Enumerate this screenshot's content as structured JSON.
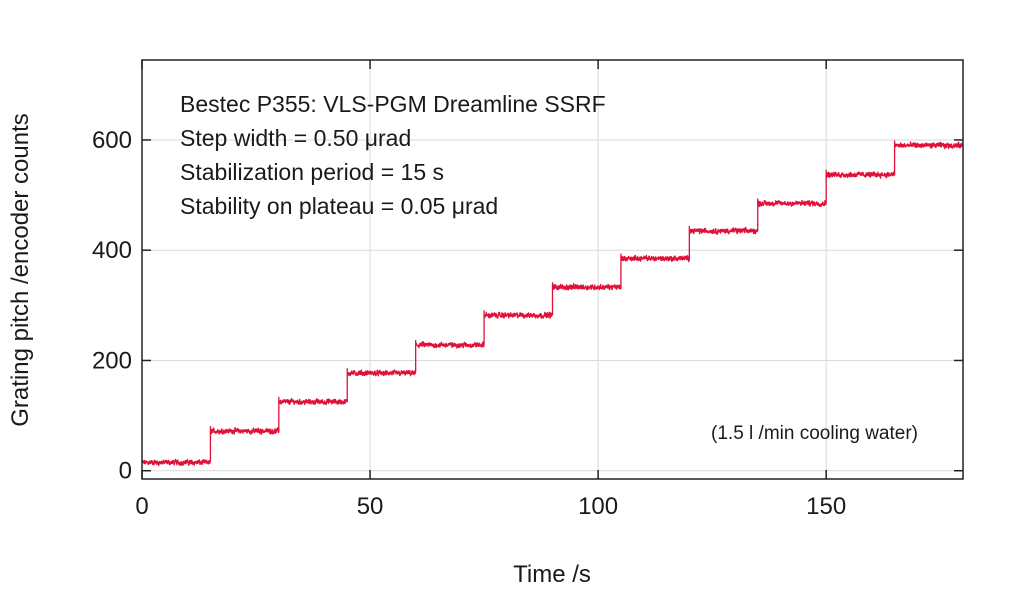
{
  "chart_data": {
    "type": "line",
    "title": "",
    "xlabel": "Time /s",
    "ylabel": "Grating pitch /encoder counts",
    "xlim": [
      0,
      180
    ],
    "ylim": [
      -15,
      745
    ],
    "xticks": [
      0,
      50,
      100,
      150
    ],
    "yticks": [
      0,
      200,
      400,
      600
    ],
    "grid": true,
    "annotations": [
      "Bestec P355: VLS-PGM Dreamline SSRF",
      "Step width = 0.50 μrad",
      "Stabilization period = 15 s",
      "Stability on plateau = 0.05 μrad"
    ],
    "note": "(1.5 l /min cooling water)",
    "series_color": "#e0103a",
    "series": [
      {
        "name": "Grating pitch",
        "step_duration_s": 15,
        "steps": [
          {
            "start": 0,
            "end": 15,
            "value": 15
          },
          {
            "start": 15,
            "end": 30,
            "value": 72
          },
          {
            "start": 30,
            "end": 45,
            "value": 125
          },
          {
            "start": 45,
            "end": 60,
            "value": 177
          },
          {
            "start": 60,
            "end": 75,
            "value": 228
          },
          {
            "start": 75,
            "end": 90,
            "value": 282
          },
          {
            "start": 90,
            "end": 105,
            "value": 333
          },
          {
            "start": 105,
            "end": 120,
            "value": 385
          },
          {
            "start": 120,
            "end": 135,
            "value": 435
          },
          {
            "start": 135,
            "end": 150,
            "value": 485
          },
          {
            "start": 150,
            "end": 165,
            "value": 537
          },
          {
            "start": 165,
            "end": 180,
            "value": 590
          }
        ]
      }
    ]
  }
}
